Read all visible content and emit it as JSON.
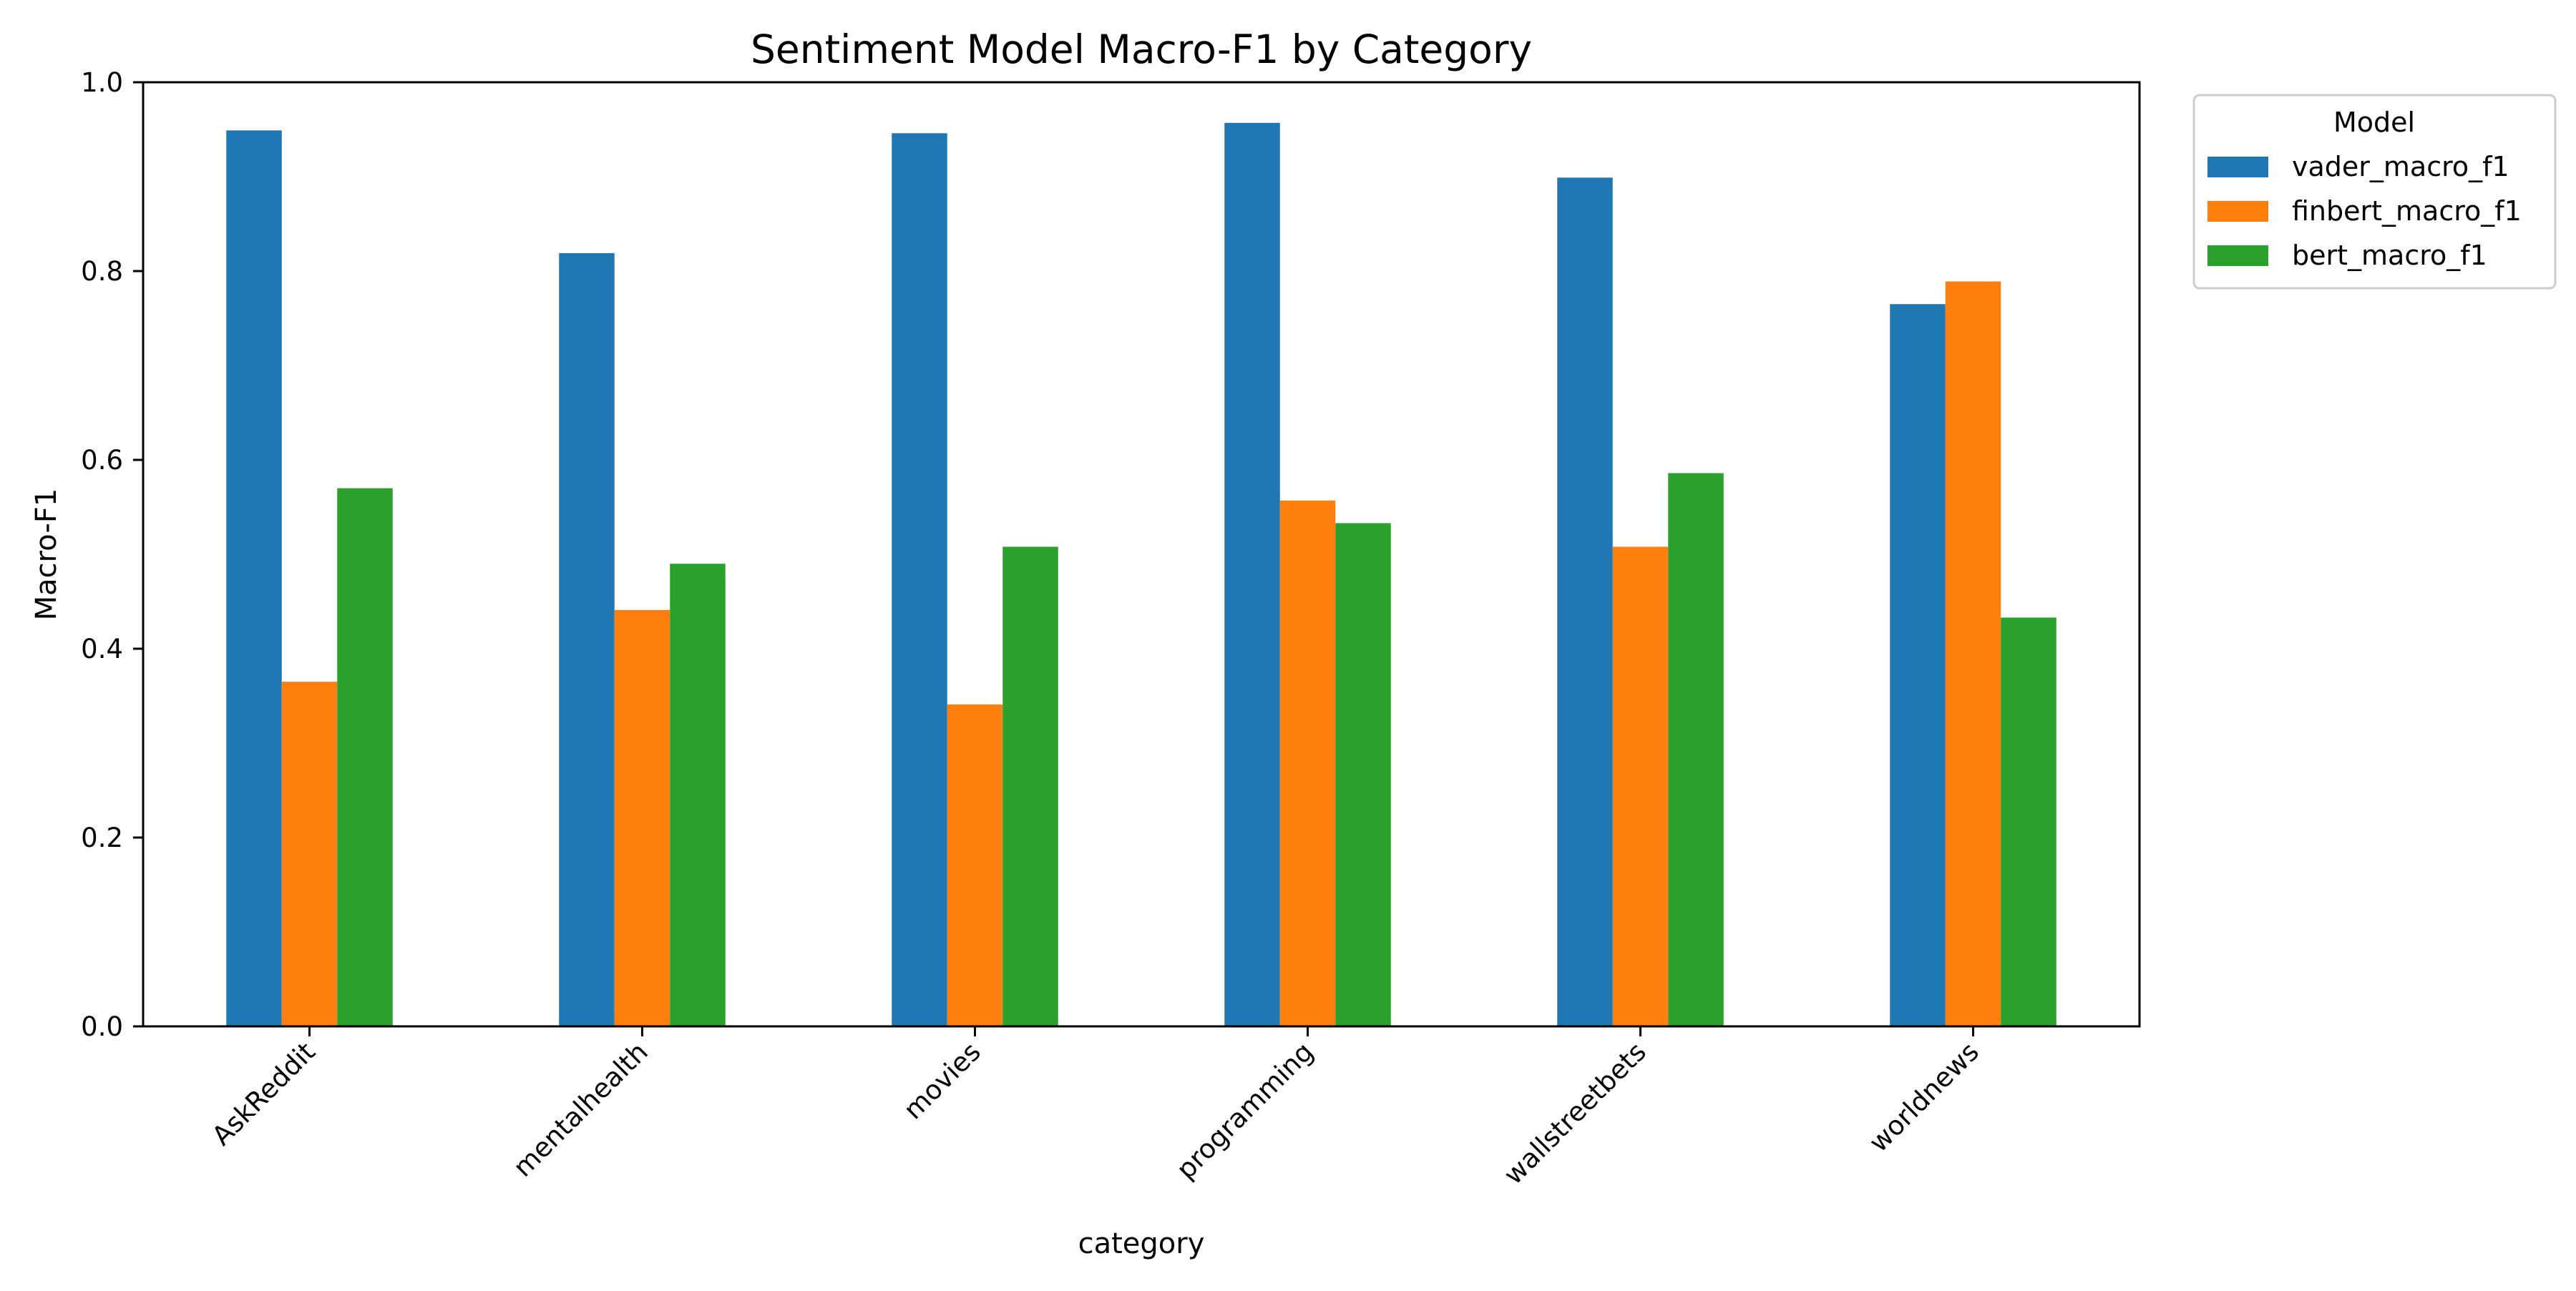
{
  "chart_data": {
    "type": "bar",
    "title": "Sentiment Model Macro-F1 by Category",
    "xlabel": "category",
    "ylabel": "Macro-F1",
    "categories": [
      "AskReddit",
      "mentalhealth",
      "movies",
      "programming",
      "wallstreetbets",
      "worldnews"
    ],
    "series": [
      {
        "name": "vader_macro_f1",
        "color": "#1f77b4",
        "values": [
          0.949,
          0.819,
          0.946,
          0.957,
          0.899,
          0.765
        ]
      },
      {
        "name": "finbert_macro_f1",
        "color": "#ff7f0e",
        "values": [
          0.365,
          0.441,
          0.341,
          0.557,
          0.508,
          0.789
        ]
      },
      {
        "name": "bert_macro_f1",
        "color": "#2ca02c",
        "values": [
          0.57,
          0.49,
          0.508,
          0.533,
          0.586,
          0.433
        ]
      }
    ],
    "ylim": [
      0,
      1.0
    ],
    "yticks": [
      0.0,
      0.2,
      0.4,
      0.6,
      0.8,
      1.0
    ],
    "ytick_labels": [
      "0.0",
      "0.2",
      "0.4",
      "0.6",
      "0.8",
      "1.0"
    ],
    "legend": {
      "title": "Model",
      "placement": "outside-top-right"
    },
    "grid": false
  }
}
